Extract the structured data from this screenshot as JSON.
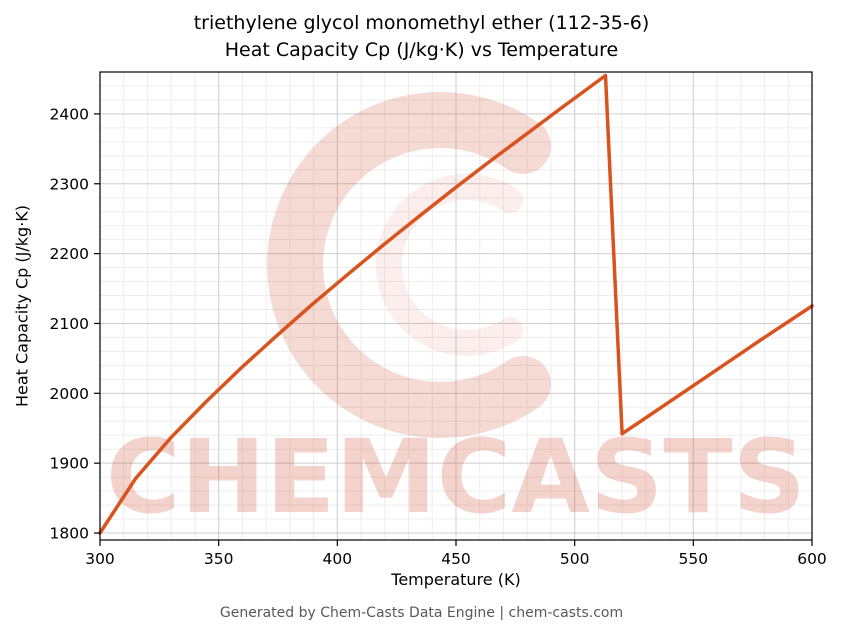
{
  "chart_data": {
    "type": "line",
    "title_line1": "triethylene glycol monomethyl ether (112-35-6)",
    "title_line2": "Heat Capacity Cp (J/kg·K) vs Temperature",
    "xlabel": "Temperature (K)",
    "ylabel": "Heat Capacity Cp (J/kg·K)",
    "xlim": [
      300,
      600
    ],
    "ylim": [
      1790,
      2460
    ],
    "xticks": [
      300,
      350,
      400,
      450,
      500,
      550,
      600
    ],
    "yticks": [
      1800,
      1900,
      2000,
      2100,
      2200,
      2300,
      2400
    ],
    "minor_x_step": 10,
    "minor_y_step": 20,
    "grid": true,
    "line_color": "#d9531e",
    "line_width": 3.5,
    "major_grid_color": "#cfcfcf",
    "minor_grid_color": "#ededed",
    "series": [
      {
        "name": "Heat Capacity Cp",
        "points": [
          [
            300,
            1800
          ],
          [
            315,
            1878
          ],
          [
            330,
            1937
          ],
          [
            345,
            1989
          ],
          [
            360,
            2038
          ],
          [
            375,
            2084
          ],
          [
            390,
            2129
          ],
          [
            405,
            2172
          ],
          [
            420,
            2214
          ],
          [
            435,
            2255
          ],
          [
            450,
            2295
          ],
          [
            465,
            2334
          ],
          [
            480,
            2372
          ],
          [
            495,
            2410
          ],
          [
            505,
            2435
          ],
          [
            513,
            2455
          ],
          [
            520,
            1942
          ],
          [
            540,
            1988
          ],
          [
            560,
            2034
          ],
          [
            580,
            2080
          ],
          [
            600,
            2125
          ]
        ]
      }
    ],
    "watermark": {
      "symbol": "C-swirl",
      "text": "CHEMCASTS",
      "color": "#d04828",
      "symbol_opacity": 0.2,
      "text_opacity": 0.24
    },
    "footer": "Generated by Chem-Casts Data Engine | chem-casts.com"
  }
}
